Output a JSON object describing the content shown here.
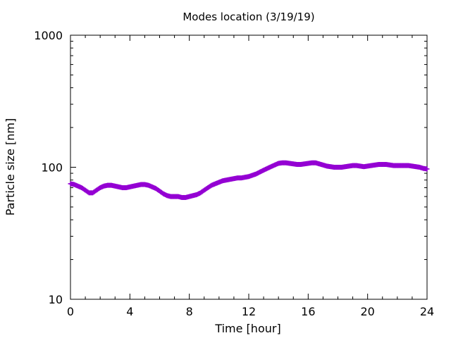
{
  "chart_data": {
    "type": "scatter",
    "title": "Modes location (3/19/19)",
    "xlabel": "Time [hour]",
    "ylabel": "Particle size [nm]",
    "xlim": [
      0,
      24
    ],
    "ylim": [
      10,
      1000
    ],
    "yscale": "log",
    "grid": false,
    "x_ticks": [
      0,
      4,
      8,
      12,
      16,
      20,
      24
    ],
    "x_tick_labels": [
      "0",
      "4",
      "8",
      "12",
      "16",
      "20",
      "24"
    ],
    "y_ticks": [
      10,
      100,
      1000
    ],
    "y_tick_labels": [
      "10",
      "100",
      "1000"
    ],
    "series": [
      {
        "color": "#9400d3",
        "marker": "plus",
        "x": [
          0,
          0.25,
          0.5,
          0.75,
          1.0,
          1.25,
          1.5,
          1.75,
          2.0,
          2.25,
          2.5,
          2.75,
          3.0,
          3.25,
          3.5,
          3.75,
          4.0,
          4.25,
          4.5,
          4.75,
          5.0,
          5.25,
          5.5,
          5.75,
          6.0,
          6.25,
          6.5,
          6.75,
          7.0,
          7.25,
          7.5,
          7.75,
          8.0,
          8.25,
          8.5,
          8.75,
          9.0,
          9.25,
          9.5,
          9.75,
          10.0,
          10.25,
          10.5,
          10.75,
          11.0,
          11.25,
          11.5,
          11.75,
          12.0,
          12.25,
          12.5,
          12.75,
          13.0,
          13.25,
          13.5,
          13.75,
          14.0,
          14.25,
          14.5,
          14.75,
          15.0,
          15.25,
          15.5,
          15.75,
          16.0,
          16.25,
          16.5,
          16.75,
          17.0,
          17.25,
          17.5,
          17.75,
          18.0,
          18.25,
          18.5,
          18.75,
          19.0,
          19.25,
          19.5,
          19.75,
          20.0,
          20.25,
          20.5,
          20.75,
          21.0,
          21.25,
          21.5,
          21.75,
          22.0,
          22.25,
          22.5,
          22.75,
          23.0,
          23.25,
          23.5,
          23.75,
          24.0
        ],
        "y": [
          75,
          74,
          72,
          70,
          67,
          64,
          64,
          67,
          70,
          72,
          73,
          73,
          72,
          71,
          70,
          70,
          71,
          72,
          73,
          74,
          74,
          73,
          71,
          69,
          66,
          63,
          61,
          60,
          60,
          60,
          59,
          59,
          60,
          61,
          62,
          64,
          67,
          70,
          73,
          75,
          77,
          79,
          80,
          81,
          82,
          83,
          83,
          84,
          85,
          87,
          89,
          92,
          95,
          98,
          101,
          104,
          107,
          108,
          108,
          107,
          106,
          105,
          105,
          106,
          107,
          108,
          108,
          106,
          104,
          102,
          101,
          100,
          100,
          100,
          101,
          102,
          103,
          103,
          102,
          101,
          102,
          103,
          104,
          105,
          105,
          105,
          104,
          103,
          103,
          103,
          103,
          103,
          102,
          101,
          100,
          98,
          97
        ]
      }
    ]
  }
}
